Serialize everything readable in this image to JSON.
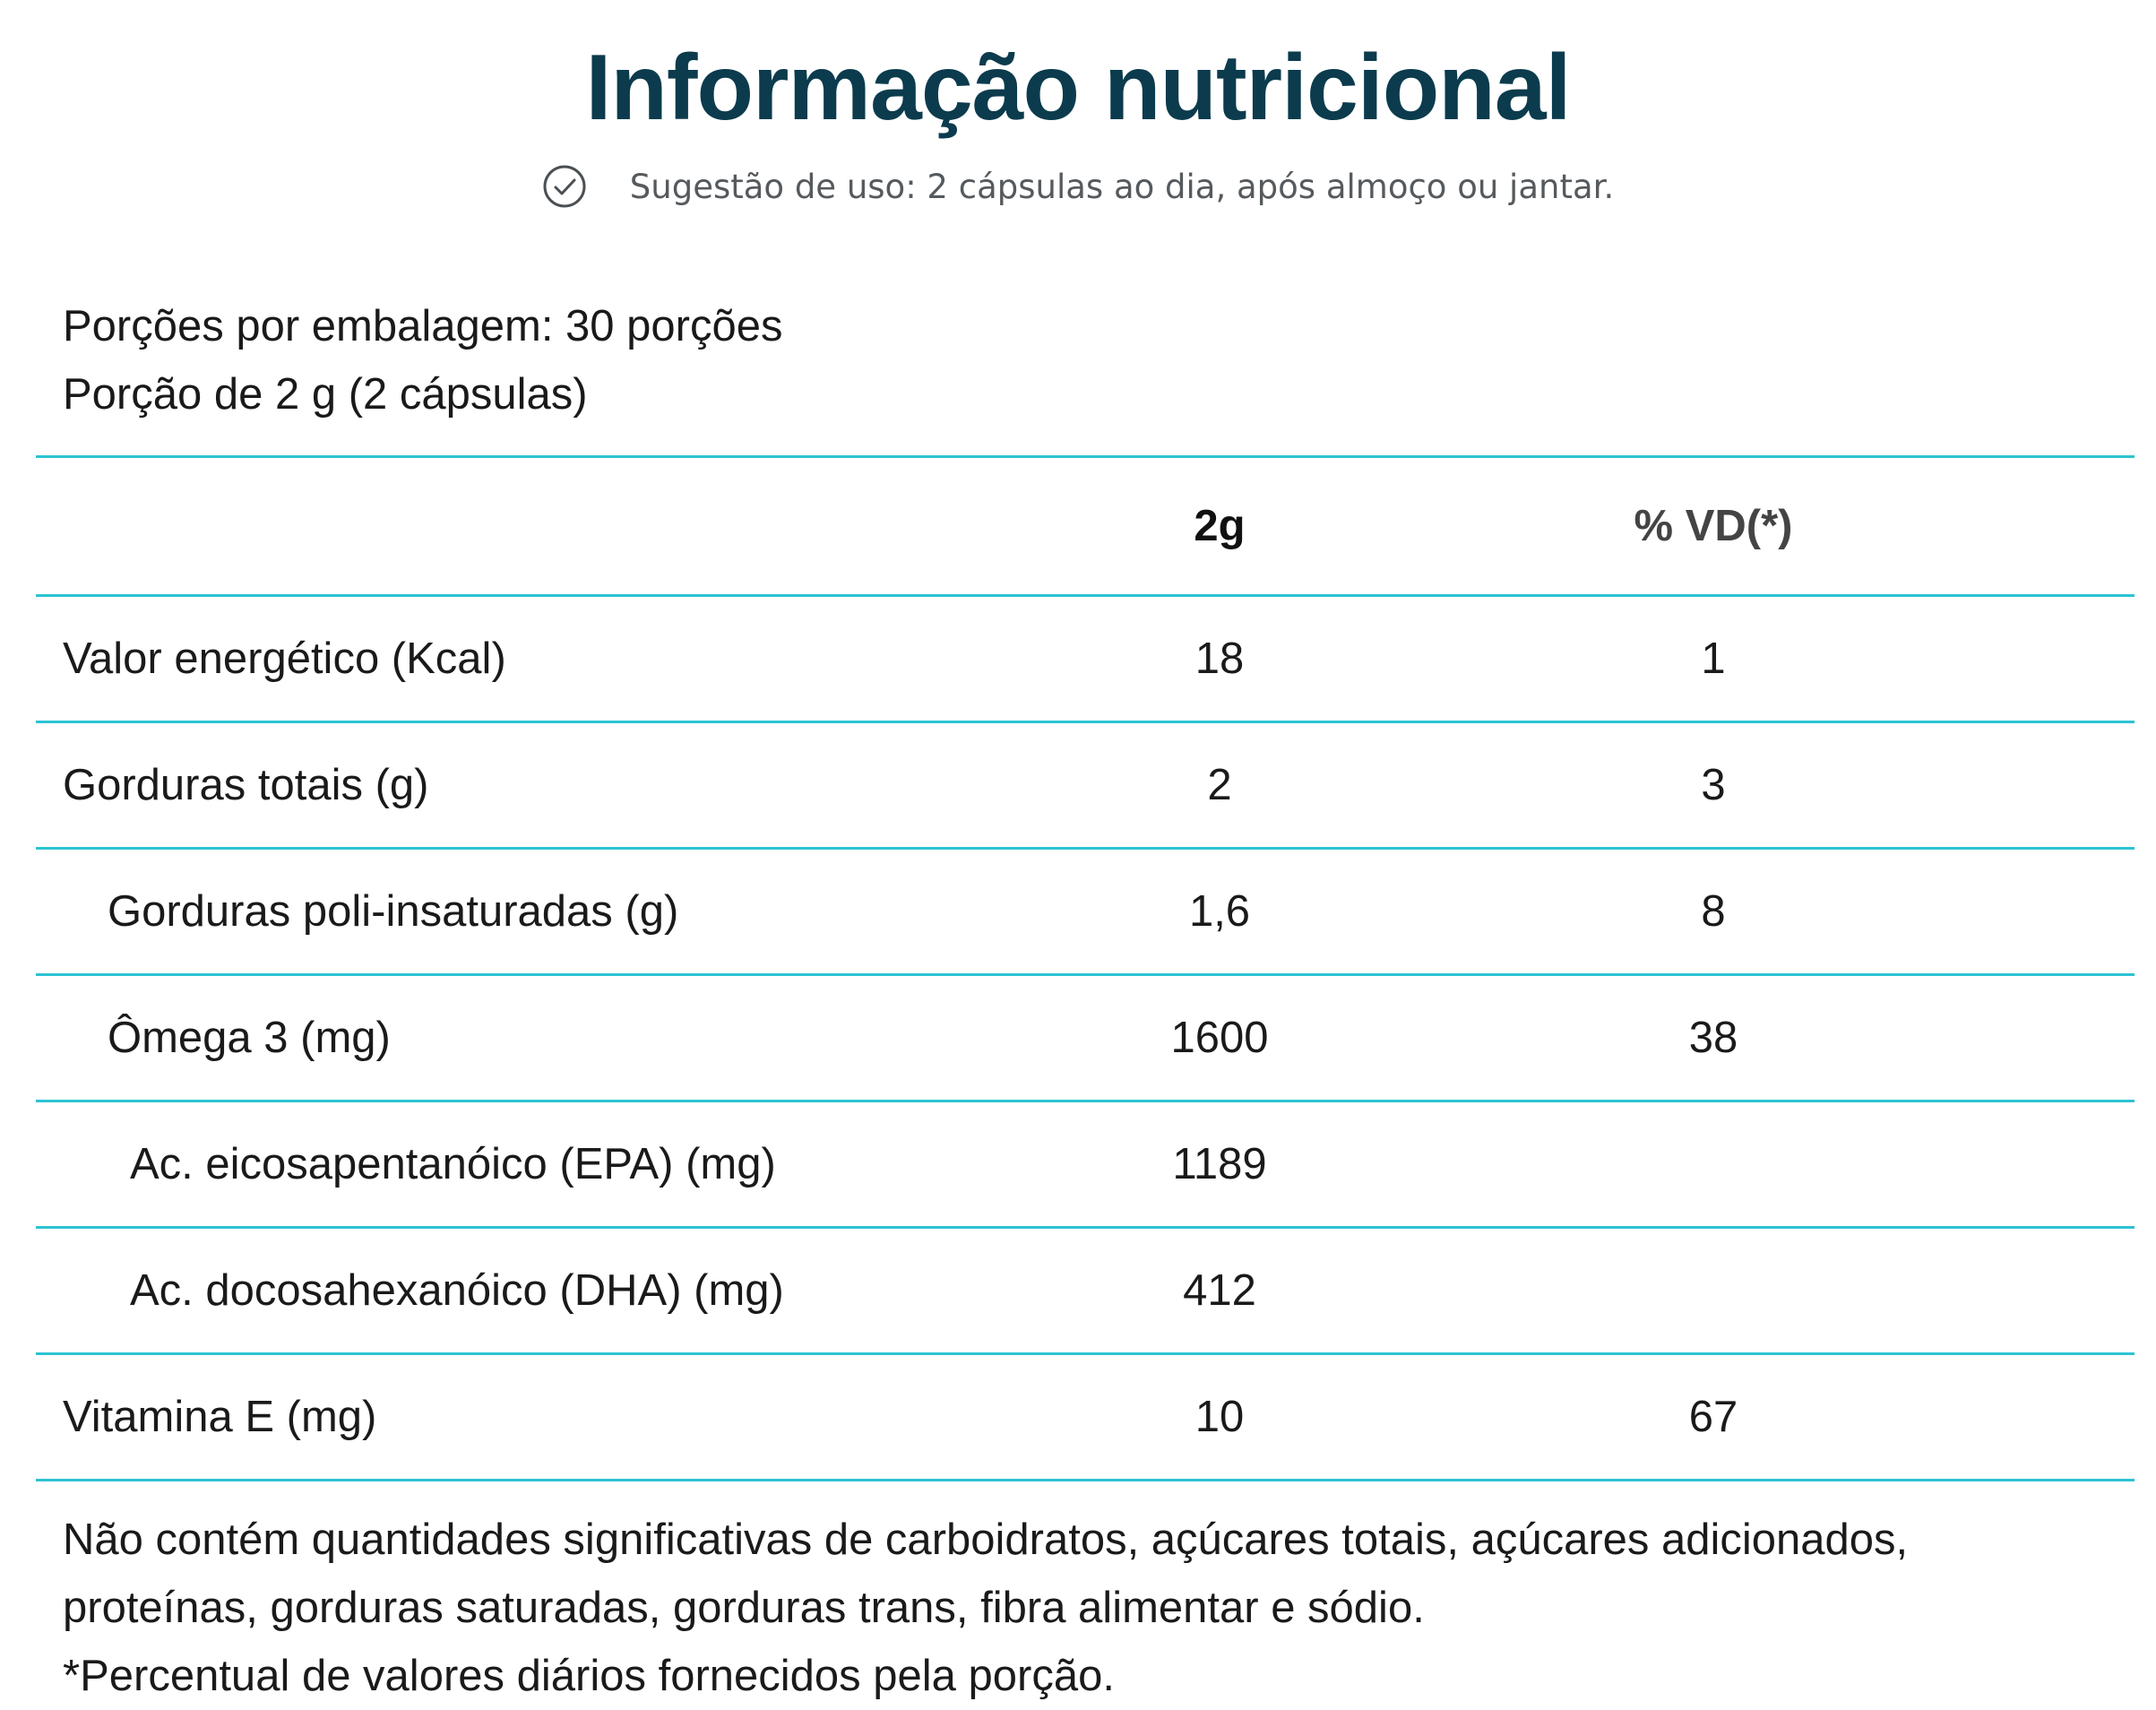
{
  "title": "Informação nutricional",
  "usage": {
    "icon": "check-circle-icon",
    "text": "Sugestão de uso: 2 cápsulas ao dia, após almoço ou jantar."
  },
  "serving": {
    "per_package": "Porções por embalagem: 30 porções",
    "portion": "Porção de 2 g (2 cápsulas)"
  },
  "table": {
    "headers": {
      "nutrient": "",
      "amount": "2g",
      "dv": "% VD(*)"
    },
    "rows": [
      {
        "name": "Valor energético (Kcal)",
        "amount": "18",
        "dv": "1"
      },
      {
        "name": "Gorduras totais (g)",
        "amount": "2",
        "dv": "3"
      },
      {
        "name": "Gorduras poli-insaturadas (g)",
        "amount": "1,6",
        "dv": "8"
      },
      {
        "name": "Ômega 3 (mg)",
        "amount": "1600",
        "dv": "38"
      },
      {
        "name": "Ac. eicosapentanóico (EPA) (mg)",
        "amount": "1189",
        "dv": ""
      },
      {
        "name": "Ac. docosahexanóico (DHA) (mg)",
        "amount": "412",
        "dv": ""
      },
      {
        "name": "Vitamina E (mg)",
        "amount": "10",
        "dv": "67"
      }
    ]
  },
  "footnote": {
    "line1": "Não contém quantidades significativas de carboidratos, açúcares totais, açúcares adicionados,",
    "line2": "proteínas, gorduras saturadas, gorduras trans, fibra alimentar e sódio.",
    "line3": "*Percentual de valores diários fornecidos pela porção."
  },
  "colors": {
    "title": "#0b3b4d",
    "divider": "#2cc3d3",
    "text": "#1a1a1a",
    "subtitle": "#555a5e"
  }
}
